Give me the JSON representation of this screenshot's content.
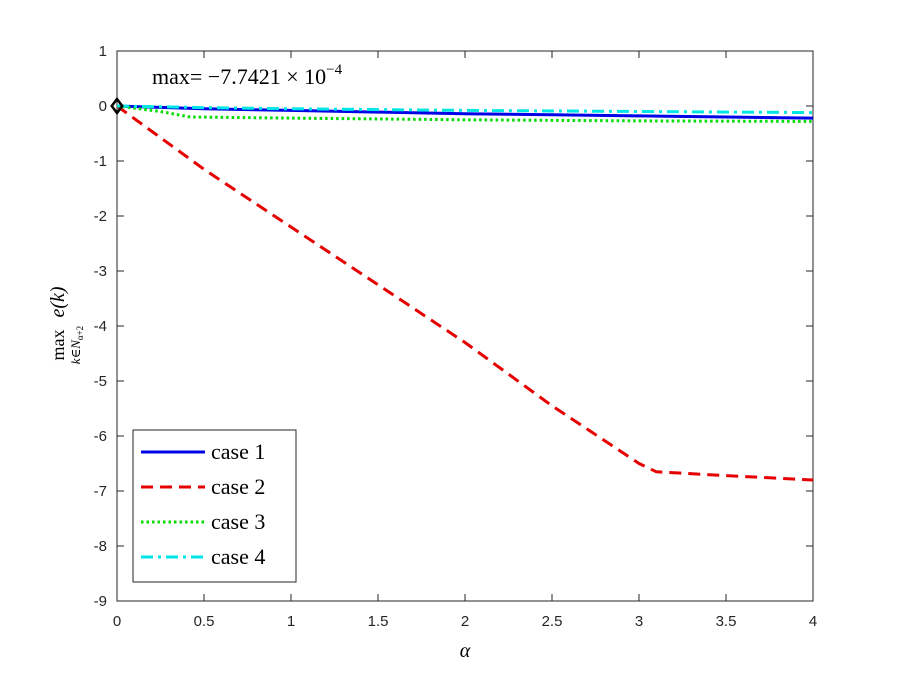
{
  "chart_data": {
    "type": "line",
    "xlim": [
      0,
      4
    ],
    "ylim": [
      -9,
      1
    ],
    "x_ticks": [
      "0",
      "0.5",
      "1",
      "1.5",
      "2",
      "2.5",
      "3",
      "3.5",
      "4"
    ],
    "y_ticks": [
      "1",
      "0",
      "-1",
      "-2",
      "-3",
      "-4",
      "-5",
      "-6",
      "-7",
      "-8",
      "-9"
    ],
    "xlabel": "α",
    "ylabel": {
      "main": "max",
      "func": "e(k)",
      "subscript": "k∈N",
      "subsub": "α+2"
    },
    "annotation": {
      "prefix": "max= −7.7421 × 10",
      "exponent": "−4"
    },
    "grid": false,
    "legend_placement": "bottom-left",
    "series": [
      {
        "name": "case 1",
        "color": "#0000e6",
        "style": "solid",
        "x": [
          0,
          0.5,
          1,
          1.5,
          2,
          2.5,
          3,
          3.5,
          4
        ],
        "y": [
          0,
          -0.05,
          -0.08,
          -0.11,
          -0.14,
          -0.16,
          -0.18,
          -0.2,
          -0.22
        ]
      },
      {
        "name": "case 2",
        "color": "#e60000",
        "style": "dashed",
        "x": [
          0,
          0.5,
          1,
          1.5,
          2,
          2.5,
          3,
          3.1,
          3.5,
          4
        ],
        "y": [
          0,
          -1.15,
          -2.2,
          -3.25,
          -4.3,
          -5.45,
          -6.5,
          -6.65,
          -6.72,
          -6.8
        ]
      },
      {
        "name": "case 3",
        "color": "#00dd00",
        "style": "dotted",
        "x": [
          0,
          0.25,
          0.42,
          1,
          2,
          3,
          4
        ],
        "y": [
          0,
          -0.1,
          -0.2,
          -0.22,
          -0.25,
          -0.27,
          -0.28
        ]
      },
      {
        "name": "case 4",
        "color": "#00e6e6",
        "style": "dashdot",
        "x": [
          0,
          0.5,
          1,
          2,
          3,
          4
        ],
        "y": [
          0,
          -0.03,
          -0.05,
          -0.08,
          -0.1,
          -0.12
        ]
      }
    ],
    "marker": {
      "shape": "diamond",
      "x": 0,
      "y": 0,
      "color": "#000000"
    }
  }
}
